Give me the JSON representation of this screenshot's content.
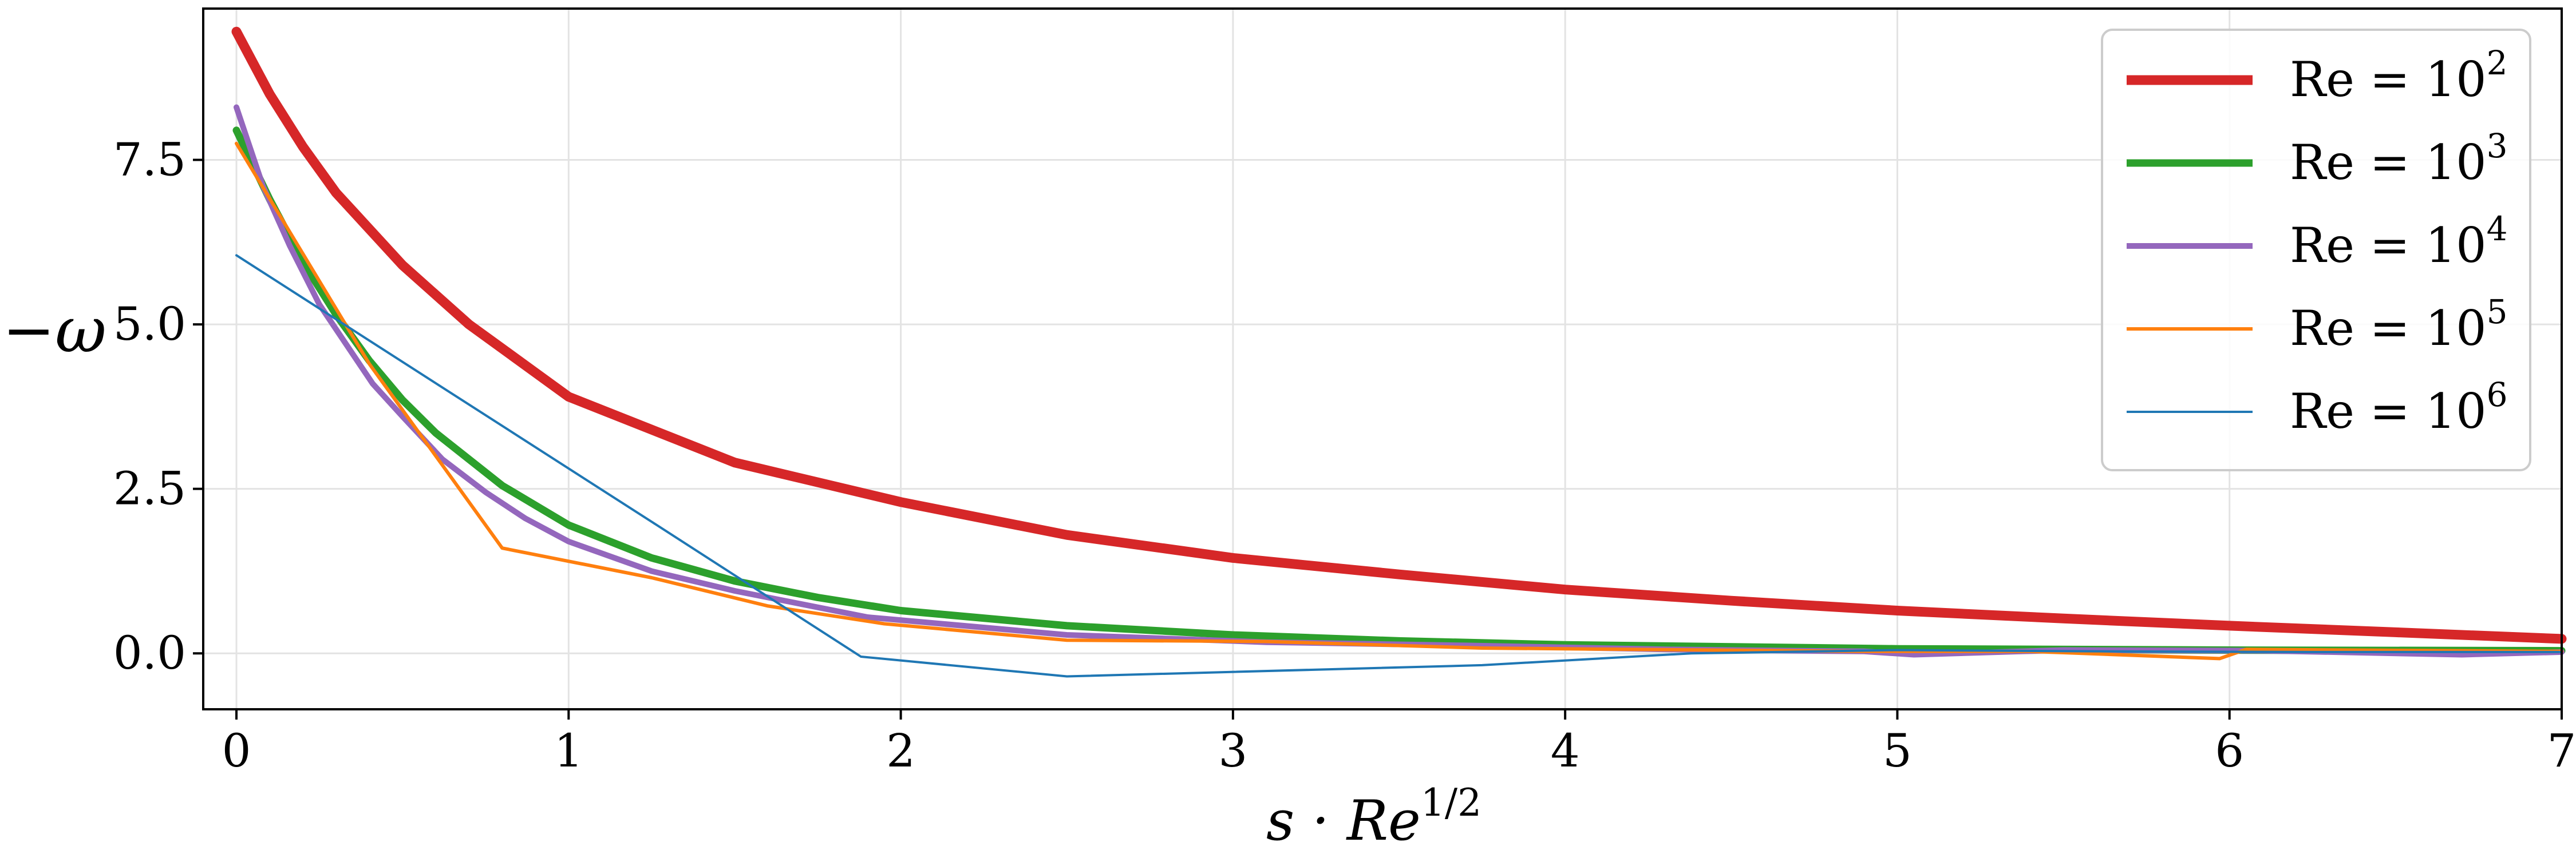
{
  "chart_data": {
    "type": "line",
    "title": "",
    "xlabel": "s · Re",
    "xlabel_sup": "1/2",
    "ylabel": "−ω",
    "xlim": [
      -0.1,
      7
    ],
    "ylim": [
      -0.85,
      9.8
    ],
    "grid": true,
    "legend_position": "top-right",
    "x_ticks": [
      {
        "value": 0,
        "label": "0"
      },
      {
        "value": 1,
        "label": "1"
      },
      {
        "value": 2,
        "label": "2"
      },
      {
        "value": 3,
        "label": "3"
      },
      {
        "value": 4,
        "label": "4"
      },
      {
        "value": 5,
        "label": "5"
      },
      {
        "value": 6,
        "label": "6"
      },
      {
        "value": 7,
        "label": "7"
      }
    ],
    "y_ticks": [
      {
        "value": 0,
        "label": "0.0"
      },
      {
        "value": 2.5,
        "label": "2.5"
      },
      {
        "value": 5,
        "label": "5.0"
      },
      {
        "value": 7.5,
        "label": "7.5"
      }
    ],
    "series": [
      {
        "name": "Re = 10",
        "name_sup": "2",
        "color": "#d62728",
        "width": 17,
        "x": [
          0,
          0.1,
          0.2,
          0.3,
          0.5,
          0.7,
          1.0,
          1.5,
          2.0,
          2.5,
          3.0,
          3.5,
          4.0,
          4.5,
          5.0,
          5.5,
          6.0,
          6.5,
          7.0
        ],
        "y": [
          9.45,
          8.5,
          7.7,
          7.0,
          5.9,
          5.0,
          3.9,
          2.9,
          2.3,
          1.8,
          1.45,
          1.2,
          0.97,
          0.8,
          0.65,
          0.53,
          0.42,
          0.32,
          0.22
        ]
      },
      {
        "name": "Re = 10",
        "name_sup": "3",
        "color": "#2ca02c",
        "width": 13,
        "x": [
          0,
          0.1,
          0.2,
          0.3,
          0.4,
          0.5,
          0.6,
          0.8,
          1.0,
          1.25,
          1.5,
          1.75,
          2.0,
          2.5,
          3.0,
          3.5,
          4.0,
          5.0,
          6.0,
          7.0
        ],
        "y": [
          7.95,
          6.9,
          5.95,
          5.15,
          4.45,
          3.85,
          3.35,
          2.55,
          1.95,
          1.45,
          1.1,
          0.85,
          0.65,
          0.42,
          0.28,
          0.19,
          0.13,
          0.07,
          0.05,
          0.04
        ]
      },
      {
        "name": "Re = 10",
        "name_sup": "4",
        "color": "#9467bd",
        "width": 10,
        "x": [
          0,
          0.08,
          0.16,
          0.25,
          0.33,
          0.41,
          0.5,
          0.62,
          0.75,
          0.87,
          1.0,
          1.25,
          1.5,
          1.9,
          2.5,
          3.1,
          3.7,
          4.3,
          4.9,
          5.05,
          5.5,
          6.1,
          6.7,
          7.0
        ],
        "y": [
          8.3,
          7.1,
          6.2,
          5.3,
          4.7,
          4.1,
          3.6,
          2.95,
          2.45,
          2.05,
          1.7,
          1.25,
          0.95,
          0.55,
          0.28,
          0.17,
          0.12,
          0.06,
          0.03,
          -0.02,
          0.05,
          0.04,
          -0.02,
          0.02
        ]
      },
      {
        "name": "Re = 10",
        "name_sup": "5",
        "color": "#ff7f0e",
        "width": 6,
        "x": [
          0,
          0.4,
          0.8,
          1.25,
          1.6,
          1.95,
          2.5,
          3.1,
          3.75,
          4.2,
          4.9,
          5.4,
          5.97,
          6.05,
          7.0
        ],
        "y": [
          7.75,
          4.4,
          1.6,
          1.15,
          0.72,
          0.45,
          0.2,
          0.18,
          0.08,
          0.06,
          0.03,
          0.03,
          -0.08,
          0.06,
          0.03
        ]
      },
      {
        "name": "Re = 10",
        "name_sup": "6",
        "color": "#1f77b4",
        "width": 4,
        "x": [
          0,
          1.25,
          1.88,
          2.5,
          3.75,
          4.38,
          5.0,
          5.63,
          6.25,
          7.0
        ],
        "y": [
          6.05,
          2.0,
          -0.05,
          -0.35,
          -0.18,
          0.0,
          0.05,
          0.03,
          0.02,
          0.02
        ]
      }
    ]
  }
}
